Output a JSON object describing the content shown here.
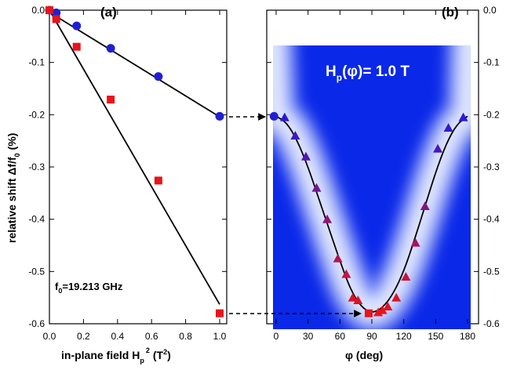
{
  "chart_data": [
    {
      "type": "scatter",
      "panel_label": "(a)",
      "xlabel": "in-plane field H",
      "xlabel_sub": "p",
      "xlabel_sup": "2",
      "xlabel_unit": "(T",
      "xlabel_unit_sup": "2",
      "xlabel_close": ")",
      "ylabel": "relative shift  Δf/f",
      "ylabel_sub": "0",
      "ylabel_unit": "(%)",
      "xlim": [
        0,
        1.05
      ],
      "ylim": [
        -0.6,
        0.0
      ],
      "xticks": [
        "0.0",
        "0.2",
        "0.4",
        "0.6",
        "0.8",
        "1.0"
      ],
      "yticks": [
        "0.0",
        "-0.1",
        "-0.2",
        "-0.3",
        "-0.4",
        "-0.5",
        "-0.6"
      ],
      "annotation": "f",
      "annotation_sub": "0",
      "annotation_rest": "=19.213 GHz",
      "series": [
        {
          "marker": "circle",
          "color": "#1f1fd6",
          "x": [
            0.0,
            0.04,
            0.16,
            0.36,
            0.64,
            1.0
          ],
          "y": [
            0.0,
            -0.005,
            -0.03,
            -0.073,
            -0.127,
            -0.203
          ],
          "fit": [
            [
              0.0,
              -0.004
            ],
            [
              1.0,
              -0.204
            ]
          ]
        },
        {
          "marker": "square",
          "color": "#e8141a",
          "x": [
            0.0,
            0.04,
            0.16,
            0.36,
            0.64,
            1.0
          ],
          "y": [
            0.0,
            -0.017,
            -0.07,
            -0.171,
            -0.326,
            -0.58
          ],
          "fit": [
            [
              0.0,
              0.0
            ],
            [
              1.0,
              -0.563
            ]
          ]
        }
      ]
    },
    {
      "type": "heatmap",
      "panel_label": "(b)",
      "title": "H",
      "title_sub": "p",
      "title_rest": "(φ)= 1.0 T",
      "xlabel": "φ (deg)",
      "xlim": [
        -5,
        182
      ],
      "ylim": [
        -0.6,
        0.0
      ],
      "xticks": [
        "0",
        "30",
        "60",
        "90",
        "120",
        "150",
        "180"
      ],
      "yticks": [
        "0.0",
        "-0.1",
        "-0.2",
        "-0.3",
        "-0.4",
        "-0.5",
        "-0.6"
      ],
      "y_axis_side": "right",
      "series": [
        {
          "marker": "triangle",
          "x": [
            8,
            18,
            28,
            38,
            48,
            58,
            66,
            72,
            77,
            96,
            100,
            105,
            113,
            122,
            131,
            140,
            152,
            162,
            176
          ],
          "y": [
            -0.205,
            -0.24,
            -0.28,
            -0.34,
            -0.4,
            -0.475,
            -0.505,
            -0.55,
            -0.555,
            -0.578,
            -0.574,
            -0.567,
            -0.55,
            -0.51,
            -0.445,
            -0.375,
            -0.265,
            -0.225,
            -0.205
          ]
        }
      ],
      "endpoints": [
        {
          "marker": "circle",
          "x": -2,
          "y": -0.203
        },
        {
          "marker": "square",
          "x": 87,
          "y": -0.58
        }
      ],
      "fit_curve": [
        [
          0,
          -0.203
        ],
        [
          10,
          -0.215
        ],
        [
          20,
          -0.25
        ],
        [
          30,
          -0.3
        ],
        [
          40,
          -0.36
        ],
        [
          50,
          -0.42
        ],
        [
          60,
          -0.48
        ],
        [
          70,
          -0.535
        ],
        [
          80,
          -0.568
        ],
        [
          90,
          -0.58
        ],
        [
          100,
          -0.57
        ],
        [
          110,
          -0.543
        ],
        [
          120,
          -0.5
        ],
        [
          130,
          -0.44
        ],
        [
          140,
          -0.375
        ],
        [
          150,
          -0.31
        ],
        [
          160,
          -0.255
        ],
        [
          170,
          -0.218
        ],
        [
          180,
          -0.203
        ]
      ]
    }
  ],
  "colors": {
    "heatmap_blue": "#0a28e8",
    "heatmap_white": "#ffffff",
    "triangle_start": "#2818d8",
    "triangle_end": "#e8141a",
    "line": "#000000"
  }
}
